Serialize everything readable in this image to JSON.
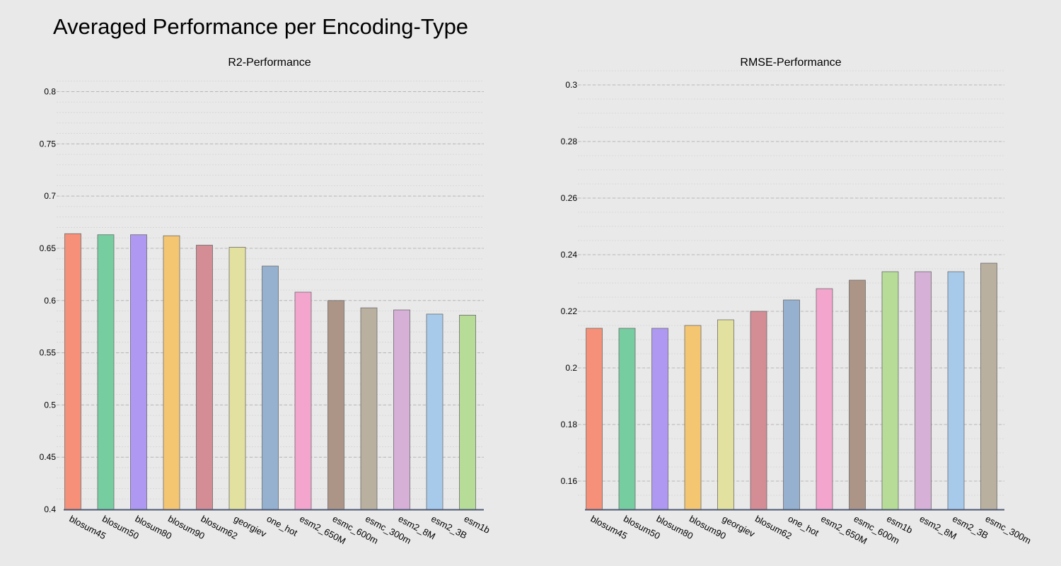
{
  "page": {
    "title": "Averaged Performance per Encoding-Type"
  },
  "chart_data": [
    {
      "type": "bar",
      "title": "R2-Performance",
      "categories": [
        "blosum45",
        "blosum50",
        "blosum80",
        "blosum90",
        "blosum62",
        "georgiev",
        "one_hot",
        "esm2_650M",
        "esmc_600m",
        "esmc_300m",
        "esm2_8M",
        "esm2_3B",
        "esm1b"
      ],
      "values": [
        0.664,
        0.663,
        0.663,
        0.662,
        0.653,
        0.651,
        0.633,
        0.608,
        0.6,
        0.593,
        0.591,
        0.587,
        0.586
      ],
      "colors": [
        "#f69078",
        "#76cda0",
        "#ae98f2",
        "#f5c672",
        "#d48c95",
        "#e3e19f",
        "#95b1cf",
        "#f4a5ce",
        "#ac9587",
        "#b9b0a0",
        "#d6b0d6",
        "#a8caea",
        "#b7dc98"
      ],
      "xlabel": "",
      "ylabel": "",
      "ylim": [
        0.4,
        0.82
      ],
      "yticks": [
        0.4,
        0.45,
        0.5,
        0.55,
        0.6,
        0.65,
        0.7,
        0.75,
        0.8
      ],
      "ytick_labels": [
        "0.4",
        "0.45",
        "0.5",
        "0.55",
        "0.6",
        "0.65",
        "0.7",
        "0.75",
        "0.8"
      ],
      "minor_step": 0.01,
      "grid": true,
      "legend": "none"
    },
    {
      "type": "bar",
      "title": "RMSE-Performance",
      "categories": [
        "blosum45",
        "blosum50",
        "blosum80",
        "blosum90",
        "georgiev",
        "blosum62",
        "one_hot",
        "esm2_650M",
        "esmc_600m",
        "esm1b",
        "esm2_8M",
        "esm2_3B",
        "esmc_300m"
      ],
      "values": [
        0.214,
        0.214,
        0.214,
        0.215,
        0.217,
        0.22,
        0.224,
        0.228,
        0.231,
        0.234,
        0.234,
        0.234,
        0.237
      ],
      "colors": [
        "#f69078",
        "#76cda0",
        "#ae98f2",
        "#f5c672",
        "#e3e19f",
        "#d48c95",
        "#95b1cf",
        "#f4a5ce",
        "#ac9587",
        "#b7dc98",
        "#d6b0d6",
        "#a8caea",
        "#b9b0a0"
      ],
      "xlabel": "",
      "ylabel": "",
      "ylim": [
        0.15,
        0.305
      ],
      "yticks": [
        0.16,
        0.18,
        0.2,
        0.22,
        0.24,
        0.26,
        0.28,
        0.3
      ],
      "ytick_labels": [
        "0.16",
        "0.18",
        "0.2",
        "0.22",
        "0.24",
        "0.26",
        "0.28",
        "0.3"
      ],
      "minor_step": 0.005,
      "grid": true,
      "legend": "none"
    }
  ]
}
